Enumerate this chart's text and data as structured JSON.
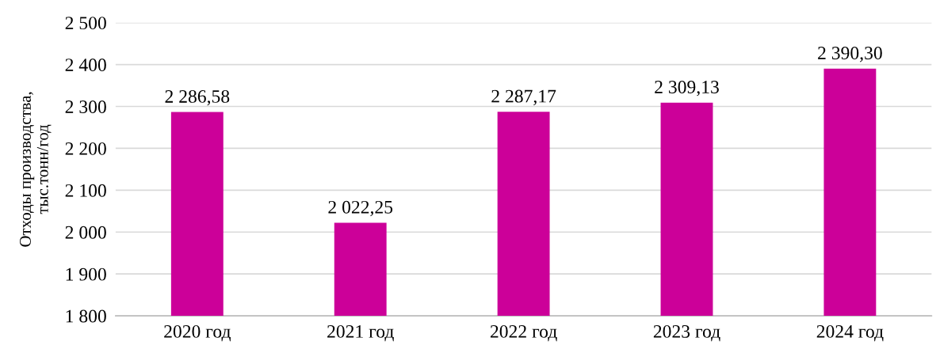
{
  "chart_data": {
    "type": "bar",
    "ylabel": "Отходы производства,\nтыс.тонн/год",
    "categories": [
      "2020 год",
      "2021 год",
      "2022 год",
      "2023 год",
      "2024 год"
    ],
    "values": [
      2286.58,
      2022.25,
      2287.17,
      2309.13,
      2390.3
    ],
    "value_labels": [
      "2 286,58",
      "2 022,25",
      "2 287,17",
      "2 309,13",
      "2 390,30"
    ],
    "color": "#cc0099",
    "ylim": [
      1800,
      2500
    ],
    "yticks": [
      {
        "value": 1800,
        "label": "1 800"
      },
      {
        "value": 1900,
        "label": "1 900"
      },
      {
        "value": 2000,
        "label": "2 000"
      },
      {
        "value": 2100,
        "label": "2 100"
      },
      {
        "value": 2200,
        "label": "2 200"
      },
      {
        "value": 2300,
        "label": "2 300"
      },
      {
        "value": 2400,
        "label": "2 400"
      },
      {
        "value": 2500,
        "label": "2 500"
      }
    ],
    "grid": "y",
    "legend": false
  }
}
